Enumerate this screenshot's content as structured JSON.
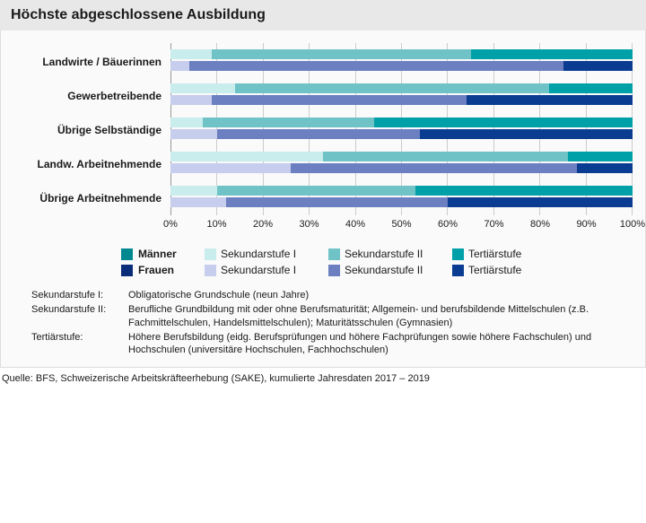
{
  "title": "Höchste abgeschlossene Ausbildung",
  "colors": {
    "m_s1": "#c9eced",
    "m_s2": "#6fc3c6",
    "m_t": "#00a0a8",
    "f_s1": "#c7cdec",
    "f_s2": "#6b7fc1",
    "f_t": "#0a3d91",
    "m_lead": "#008890",
    "f_lead": "#0a2d7a"
  },
  "categories": [
    {
      "label": "Landwirte / Bäuerinnen",
      "m": [
        9,
        56,
        35
      ],
      "f": [
        4,
        81,
        15
      ]
    },
    {
      "label": "Gewerbetreibende",
      "m": [
        14,
        68,
        18
      ],
      "f": [
        9,
        55,
        36
      ]
    },
    {
      "label": "Übrige Selbständige",
      "m": [
        7,
        37,
        56
      ],
      "f": [
        10,
        44,
        46
      ]
    },
    {
      "label": "Landw. Arbeitnehmende",
      "m": [
        33,
        53,
        14
      ],
      "f": [
        26,
        62,
        12
      ]
    },
    {
      "label": "Übrige Arbeitnehmende",
      "m": [
        10,
        43,
        47
      ],
      "f": [
        12,
        48,
        40
      ]
    }
  ],
  "xTicks": [
    "0%",
    "10%",
    "20%",
    "30%",
    "40%",
    "50%",
    "60%",
    "70%",
    "80%",
    "90%",
    "100%"
  ],
  "legend": {
    "m": {
      "lead": "Männer",
      "items": [
        "Sekundarstufe I",
        "Sekundarstufe II",
        "Tertiärstufe"
      ]
    },
    "f": {
      "lead": "Frauen",
      "items": [
        "Sekundarstufe I",
        "Sekundarstufe II",
        "Tertiärstufe"
      ]
    }
  },
  "definitions": [
    {
      "term": "Sekundarstufe I:",
      "desc": "Obligatorische Grundschule (neun Jahre)"
    },
    {
      "term": "Sekundarstufe II:",
      "desc": "Berufliche Grundbildung mit oder ohne Berufsmaturität; Allgemein- und berufsbildende Mittelschulen (z.B. Fachmittelschulen, Handelsmittelschulen); Maturitätsschulen (Gymnasien)"
    },
    {
      "term": "Tertiärstufe:",
      "desc": "Höhere Berufsbildung (eidg. Berufsprüfungen und höhere Fachprüfungen sowie höhere Fachschulen) und Hochschulen (universitäre Hochschulen, Fachhochschulen)"
    }
  ],
  "source": "Quelle: BFS, Schweizerische Arbeitskräfteerhebung (SAKE), kumulierte Jahresdaten 2017 – 2019"
}
